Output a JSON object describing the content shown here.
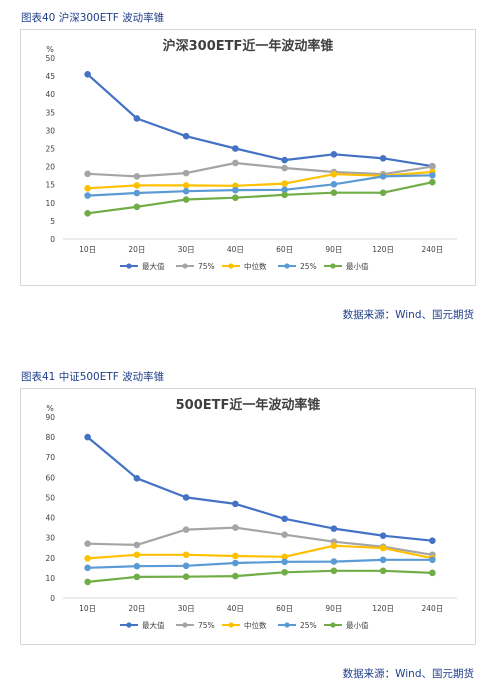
{
  "figures": [
    {
      "label": "图表40 沪深300ETF 波动率锥",
      "source": "数据来源：Wind、国元期货"
    },
    {
      "label": "图表41 中证500ETF 波动率锥",
      "source": "数据来源：Wind、国元期货"
    }
  ],
  "chart_data": [
    {
      "type": "line",
      "title": "沪深300ETF近一年波动率锥",
      "ylabel": "%",
      "ylim": [
        0,
        50
      ],
      "ytick_step": 5,
      "grid": false,
      "legend_position": "bottom",
      "categories": [
        "10日",
        "20日",
        "30日",
        "40日",
        "60日",
        "90日",
        "120日",
        "240日"
      ],
      "series": [
        {
          "name": "最大值",
          "color": "#4472c4",
          "values": [
            45.5,
            33.3,
            28.4,
            25.0,
            21.8,
            23.4,
            22.3,
            20.1
          ]
        },
        {
          "name": "75%",
          "color": "#a5a5a5",
          "values": [
            18.0,
            17.3,
            18.2,
            21.0,
            19.6,
            18.5,
            17.9,
            20.0
          ]
        },
        {
          "name": "中位数",
          "color": "#ffc000",
          "values": [
            14.0,
            14.8,
            14.8,
            14.7,
            15.3,
            17.9,
            17.5,
            18.5
          ]
        },
        {
          "name": "25%",
          "color": "#5b9bd5",
          "values": [
            12.0,
            12.7,
            13.2,
            13.5,
            13.6,
            15.1,
            17.3,
            17.6
          ]
        },
        {
          "name": "最小值",
          "color": "#70ad47",
          "values": [
            7.1,
            8.9,
            10.9,
            11.4,
            12.2,
            12.8,
            12.8,
            15.7
          ]
        }
      ]
    },
    {
      "type": "line",
      "title": "500ETF近一年波动率锥",
      "ylabel": "%",
      "ylim": [
        0,
        90
      ],
      "ytick_step": 10,
      "grid": false,
      "legend_position": "bottom",
      "categories": [
        "10日",
        "20日",
        "30日",
        "40日",
        "60日",
        "90日",
        "120日",
        "240日"
      ],
      "series": [
        {
          "name": "最大值",
          "color": "#4472c4",
          "values": [
            80.0,
            59.5,
            50.0,
            46.8,
            39.4,
            34.5,
            31.0,
            28.5
          ]
        },
        {
          "name": "75%",
          "color": "#a5a5a5",
          "values": [
            27.0,
            26.4,
            34.0,
            35.0,
            31.5,
            28.0,
            25.5,
            21.5
          ]
        },
        {
          "name": "中位数",
          "color": "#ffc000",
          "values": [
            19.7,
            21.5,
            21.5,
            20.9,
            20.5,
            26.0,
            24.8,
            19.8
          ]
        },
        {
          "name": "25%",
          "color": "#5b9bd5",
          "values": [
            15.0,
            15.8,
            16.0,
            17.4,
            18.0,
            18.1,
            19.0,
            19.0
          ]
        },
        {
          "name": "最小值",
          "color": "#70ad47",
          "values": [
            8.0,
            10.5,
            10.6,
            10.9,
            12.8,
            13.5,
            13.5,
            12.5
          ]
        }
      ]
    }
  ]
}
